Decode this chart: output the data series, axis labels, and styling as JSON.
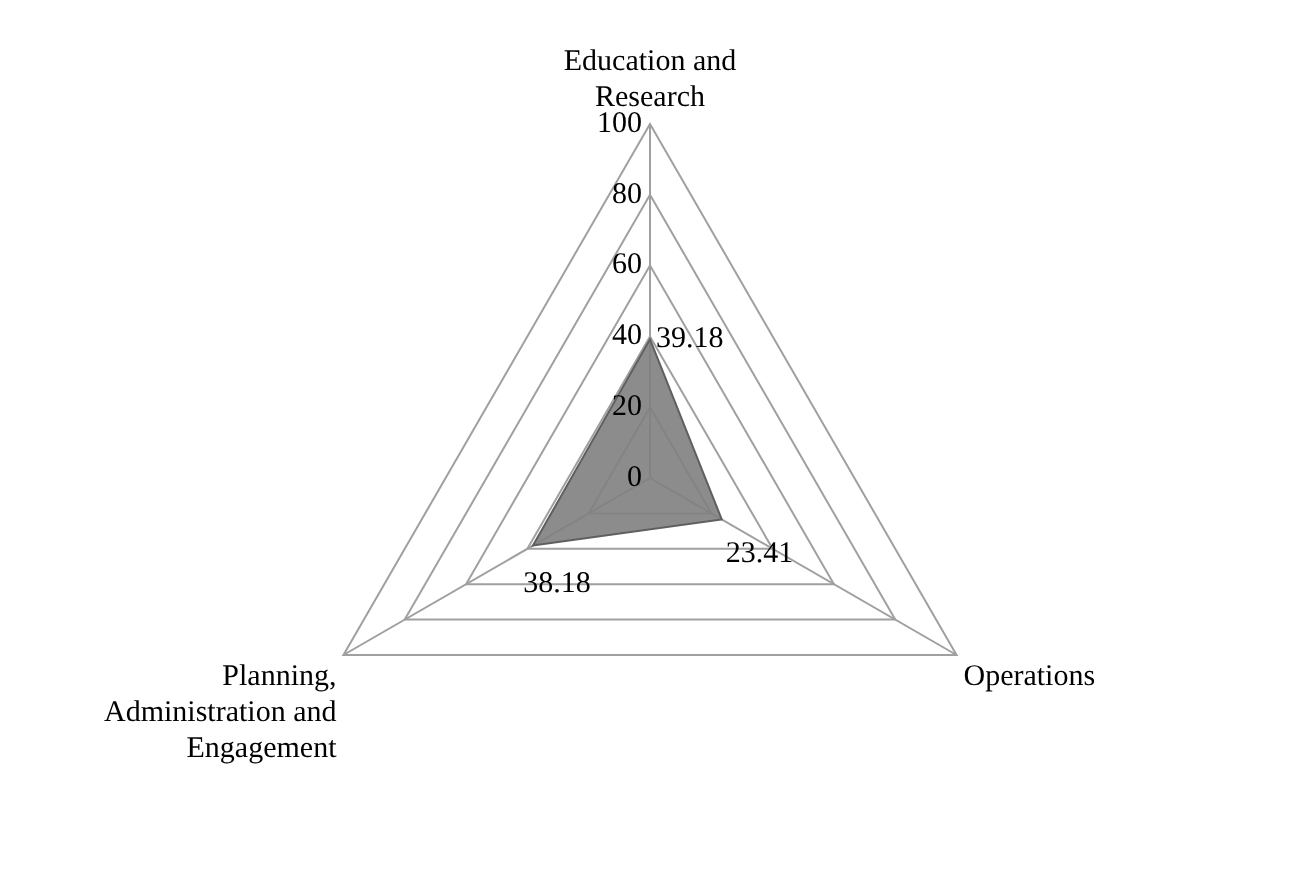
{
  "chart_data": {
    "type": "radar",
    "categories": [
      "Education and Research",
      "Operations",
      "Planning, Administration and Engagement"
    ],
    "series": [
      {
        "color": "#7f7f7f",
        "values": [
          39.18,
          23.41,
          38.18
        ]
      }
    ],
    "ylim": [
      0,
      100
    ],
    "yticks": [
      0,
      20,
      40,
      60,
      80,
      100
    ],
    "grid": true,
    "legend": false,
    "marker": "none",
    "data_labels": true
  }
}
